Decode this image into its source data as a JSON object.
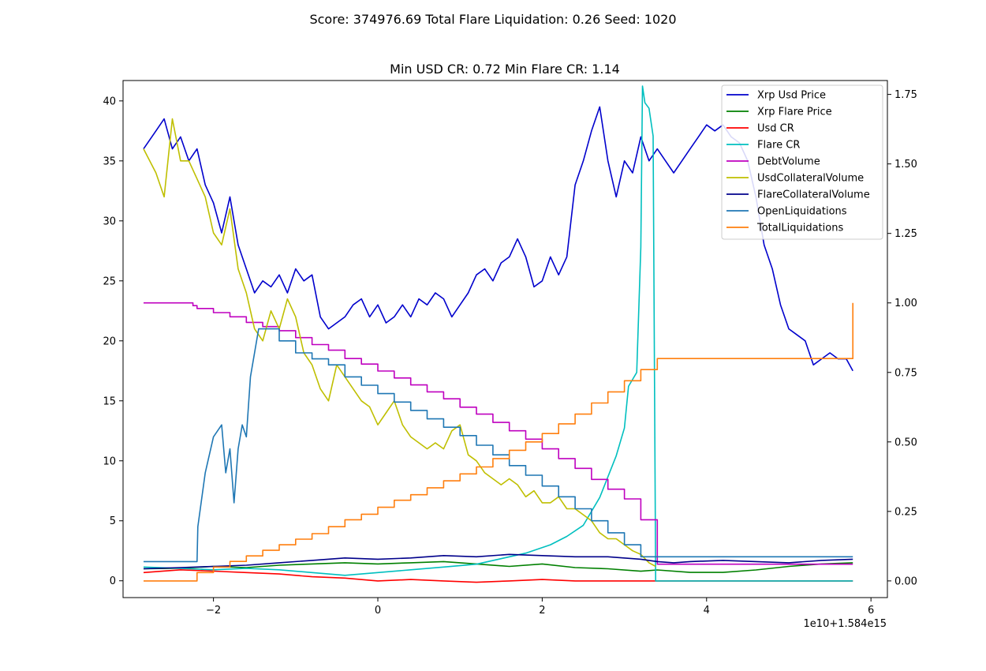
{
  "figure": {
    "suptitle": "Score: 374976.69 Total Flare Liquidation: 0.26 Seed: 1020",
    "subtitle": "Min USD CR: 0.72 Min Flare CR: 1.14",
    "x_offset_label": "1e10+1.584e15"
  },
  "chart_data": {
    "type": "line",
    "title": "Min USD CR: 0.72 Min Flare CR: 1.14",
    "suptitle": "Score: 374976.69 Total Flare Liquidation: 0.26 Seed: 1020",
    "xlabel": "",
    "ylabel": "",
    "x_offset": "1e10+1.584e15",
    "xlim": [
      -3.1,
      6.2
    ],
    "ylim_left": [
      -1.4,
      41.7
    ],
    "ylim_right": [
      -0.06,
      1.8
    ],
    "xticks": [
      -2,
      0,
      2,
      4,
      6
    ],
    "xtick_labels": [
      "−2",
      "0",
      "2",
      "4",
      "6"
    ],
    "yticks_left": [
      0,
      5,
      10,
      15,
      20,
      25,
      30,
      35,
      40
    ],
    "ytick_labels_left": [
      "0",
      "5",
      "10",
      "15",
      "20",
      "25",
      "30",
      "35",
      "40"
    ],
    "yticks_right": [
      0.0,
      0.25,
      0.5,
      0.75,
      1.0,
      1.25,
      1.5,
      1.75
    ],
    "ytick_labels_right": [
      "0.00",
      "0.25",
      "0.50",
      "0.75",
      "1.00",
      "1.25",
      "1.50",
      "1.75"
    ],
    "grid": false,
    "legend_position": "top-right",
    "series": [
      {
        "name": "Xrp Usd Price",
        "color": "#0000cc",
        "axis": "left",
        "step": false,
        "x": [
          -2.85,
          -2.7,
          -2.6,
          -2.5,
          -2.4,
          -2.3,
          -2.2,
          -2.1,
          -2.0,
          -1.9,
          -1.8,
          -1.7,
          -1.6,
          -1.5,
          -1.4,
          -1.3,
          -1.2,
          -1.1,
          -1.0,
          -0.9,
          -0.8,
          -0.7,
          -0.6,
          -0.5,
          -0.4,
          -0.3,
          -0.2,
          -0.1,
          0.0,
          0.1,
          0.2,
          0.3,
          0.4,
          0.5,
          0.6,
          0.7,
          0.8,
          0.9,
          1.0,
          1.1,
          1.2,
          1.3,
          1.4,
          1.5,
          1.6,
          1.7,
          1.8,
          1.9,
          2.0,
          2.1,
          2.2,
          2.3,
          2.4,
          2.5,
          2.6,
          2.7,
          2.8,
          2.9,
          3.0,
          3.1,
          3.2,
          3.3,
          3.4,
          3.5,
          3.6,
          3.7,
          3.8,
          3.9,
          4.0,
          4.1,
          4.2,
          4.3,
          4.4,
          4.5,
          4.6,
          4.7,
          4.8,
          4.9,
          5.0,
          5.1,
          5.2,
          5.3,
          5.4,
          5.5,
          5.6,
          5.7,
          5.78
        ],
        "y": [
          36,
          37.5,
          38.5,
          36,
          37,
          35,
          36,
          33,
          31.5,
          29,
          32,
          28,
          26,
          24,
          25,
          24.5,
          25.5,
          24,
          26,
          25,
          25.5,
          22,
          21,
          21.5,
          22,
          23,
          23.5,
          22,
          23,
          21.5,
          22,
          23,
          22,
          23.5,
          23,
          24,
          23.5,
          22,
          23,
          24,
          25.5,
          26,
          25,
          26.5,
          27,
          28.5,
          27,
          24.5,
          25,
          27,
          25.5,
          27,
          33,
          35,
          37.5,
          39.5,
          35,
          32,
          35,
          34,
          37,
          35,
          36,
          35,
          34,
          35,
          36,
          37,
          38,
          37.5,
          38,
          37,
          36.5,
          35,
          32,
          28,
          26,
          23,
          21,
          20.5,
          20,
          18,
          18.5,
          19,
          18.5,
          18.5,
          17.5
        ]
      },
      {
        "name": "Xrp Flare Price",
        "color": "#008000",
        "axis": "left",
        "step": false,
        "x": [
          -2.85,
          -2.4,
          -2.0,
          -1.6,
          -1.2,
          -0.8,
          -0.4,
          0.0,
          0.4,
          0.8,
          1.2,
          1.6,
          2.0,
          2.4,
          2.8,
          3.2,
          3.4,
          3.8,
          4.2,
          4.6,
          5.0,
          5.4,
          5.78
        ],
        "y": [
          1.0,
          1.05,
          1.2,
          1.1,
          1.3,
          1.4,
          1.5,
          1.4,
          1.5,
          1.6,
          1.4,
          1.2,
          1.4,
          1.1,
          1.0,
          0.8,
          0.9,
          0.7,
          0.7,
          0.9,
          1.2,
          1.4,
          1.5
        ]
      },
      {
        "name": "Usd CR",
        "color": "#ff0000",
        "axis": "right",
        "step": false,
        "x": [
          -2.85,
          -2.4,
          -2.0,
          -1.6,
          -1.2,
          -0.8,
          -0.4,
          0.0,
          0.4,
          0.8,
          1.2,
          1.6,
          2.0,
          2.4,
          2.8,
          3.2,
          3.4,
          3.8,
          4.2,
          4.6,
          5.0,
          5.4,
          5.78
        ],
        "y": [
          0.03,
          0.04,
          0.035,
          0.03,
          0.025,
          0.015,
          0.01,
          0.0,
          0.005,
          0.0,
          -0.005,
          0.0,
          0.005,
          0.0,
          0.0,
          0.0,
          0.0,
          0.0,
          0.0,
          0.0,
          0.0,
          0.0,
          0.0
        ]
      },
      {
        "name": "Flare CR",
        "color": "#00bfbf",
        "axis": "right",
        "step": false,
        "x": [
          -2.85,
          -2.4,
          -2.0,
          -1.6,
          -1.2,
          -0.8,
          -0.4,
          0.0,
          0.4,
          0.8,
          1.2,
          1.5,
          1.8,
          2.1,
          2.3,
          2.5,
          2.7,
          2.9,
          3.0,
          3.05,
          3.15,
          3.2,
          3.22,
          3.25,
          3.3,
          3.35,
          3.38,
          3.4,
          3.6,
          4.0,
          4.5,
          5.0,
          5.78
        ],
        "y": [
          0.05,
          0.045,
          0.04,
          0.045,
          0.04,
          0.03,
          0.02,
          0.03,
          0.04,
          0.05,
          0.06,
          0.08,
          0.1,
          0.13,
          0.16,
          0.2,
          0.3,
          0.45,
          0.55,
          0.7,
          0.75,
          1.2,
          1.78,
          1.72,
          1.7,
          1.6,
          0.0,
          0.0,
          0.0,
          0.0,
          0.0,
          0.0,
          0.0
        ]
      },
      {
        "name": "DebtVolume",
        "color": "#bf00bf",
        "axis": "right",
        "step": true,
        "x": [
          -2.85,
          -2.25,
          -2.2,
          -2.0,
          -1.8,
          -1.6,
          -1.4,
          -1.2,
          -1.0,
          -0.8,
          -0.6,
          -0.4,
          -0.2,
          0.0,
          0.2,
          0.4,
          0.6,
          0.8,
          1.0,
          1.2,
          1.4,
          1.6,
          1.8,
          2.0,
          2.2,
          2.4,
          2.6,
          2.8,
          3.0,
          3.2,
          3.4,
          5.78
        ],
        "y": [
          1.0,
          0.99,
          0.98,
          0.965,
          0.95,
          0.93,
          0.915,
          0.9,
          0.875,
          0.85,
          0.83,
          0.8,
          0.78,
          0.755,
          0.73,
          0.705,
          0.68,
          0.655,
          0.625,
          0.6,
          0.57,
          0.54,
          0.51,
          0.475,
          0.44,
          0.405,
          0.365,
          0.33,
          0.295,
          0.22,
          0.06,
          0.06
        ]
      },
      {
        "name": "UsdCollateralVolume",
        "color": "#bfbf00",
        "axis": "left",
        "step": false,
        "x": [
          -2.85,
          -2.7,
          -2.6,
          -2.5,
          -2.4,
          -2.3,
          -2.2,
          -2.1,
          -2.0,
          -1.9,
          -1.8,
          -1.7,
          -1.6,
          -1.5,
          -1.4,
          -1.3,
          -1.2,
          -1.1,
          -1.0,
          -0.9,
          -0.8,
          -0.7,
          -0.6,
          -0.5,
          -0.4,
          -0.3,
          -0.2,
          -0.1,
          0.0,
          0.1,
          0.2,
          0.3,
          0.4,
          0.5,
          0.6,
          0.7,
          0.8,
          0.9,
          1.0,
          1.1,
          1.2,
          1.3,
          1.4,
          1.5,
          1.6,
          1.7,
          1.8,
          1.9,
          2.0,
          2.1,
          2.2,
          2.3,
          2.4,
          2.5,
          2.6,
          2.7,
          2.8,
          2.9,
          3.0,
          3.1,
          3.2,
          3.3,
          3.38
        ],
        "y": [
          36,
          34,
          32,
          38.5,
          35,
          35,
          33.5,
          32,
          29,
          28,
          31,
          26,
          24,
          21,
          20,
          22.5,
          21,
          23.5,
          22,
          19,
          18,
          16,
          15,
          18,
          17,
          16,
          15,
          14.5,
          13,
          14,
          15,
          13,
          12,
          11.5,
          11,
          11.5,
          11,
          12.5,
          13,
          10.5,
          10,
          9,
          8.5,
          8,
          8.5,
          8,
          7,
          7.5,
          6.5,
          6.5,
          7,
          6,
          6,
          5.5,
          5,
          4,
          3.5,
          3.5,
          3,
          2.5,
          2.2,
          1.5,
          1.2
        ]
      },
      {
        "name": "FlareCollateralVolume",
        "color": "#00008b",
        "axis": "left",
        "step": false,
        "x": [
          -2.85,
          -2.4,
          -2.0,
          -1.6,
          -1.2,
          -0.8,
          -0.4,
          0.0,
          0.4,
          0.8,
          1.2,
          1.6,
          2.0,
          2.4,
          2.8,
          3.2,
          3.4,
          3.6,
          3.8,
          4.2,
          4.6,
          5.0,
          5.4,
          5.78
        ],
        "y": [
          1.0,
          1.1,
          1.2,
          1.3,
          1.5,
          1.7,
          1.9,
          1.8,
          1.9,
          2.1,
          2.0,
          2.2,
          2.1,
          2.0,
          2.0,
          1.8,
          1.6,
          1.5,
          1.6,
          1.7,
          1.6,
          1.5,
          1.7,
          1.8
        ]
      },
      {
        "name": "OpenLiquidations",
        "color": "#1f77b4",
        "axis": "left",
        "step": false,
        "x": [
          -2.85,
          -2.2,
          -2.19,
          -2.1,
          -2.0,
          -1.9,
          -1.85,
          -1.8,
          -1.75,
          -1.7,
          -1.65,
          -1.6,
          -1.55,
          -1.5,
          -1.45,
          -1.4,
          -1.2,
          -1.2,
          -1.0,
          -1.0,
          -0.8,
          -0.8,
          -0.6,
          -0.6,
          -0.4,
          -0.4,
          -0.2,
          -0.2,
          0.0,
          0.0,
          0.2,
          0.2,
          0.4,
          0.4,
          0.6,
          0.6,
          0.8,
          0.8,
          1.0,
          1.0,
          1.2,
          1.2,
          1.4,
          1.4,
          1.6,
          1.6,
          1.8,
          1.8,
          2.0,
          2.0,
          2.2,
          2.2,
          2.4,
          2.4,
          2.6,
          2.6,
          2.8,
          2.8,
          3.0,
          3.0,
          3.2,
          3.2,
          3.4,
          3.4,
          5.78
        ],
        "y": [
          1.6,
          1.6,
          4.5,
          9,
          12,
          13,
          9,
          11,
          6.5,
          11,
          13,
          12,
          17,
          19,
          21,
          21,
          21,
          20,
          20,
          19,
          19,
          18.5,
          18.5,
          18,
          18,
          17,
          17,
          16.3,
          16.3,
          15.6,
          15.6,
          14.9,
          14.9,
          14.2,
          14.2,
          13.5,
          13.5,
          12.8,
          12.8,
          12.1,
          12.1,
          11.3,
          11.3,
          10.5,
          10.5,
          9.6,
          9.6,
          8.8,
          8.8,
          7.9,
          7.9,
          7,
          7,
          6,
          6,
          5,
          5,
          4,
          4,
          3,
          3,
          2,
          2,
          2,
          2
        ]
      },
      {
        "name": "TotalLiquidations",
        "color": "#ff7f0e",
        "axis": "right",
        "step": true,
        "x": [
          -2.85,
          -2.2,
          -2.0,
          -1.8,
          -1.6,
          -1.4,
          -1.2,
          -1.0,
          -0.8,
          -0.6,
          -0.4,
          -0.2,
          0.0,
          0.2,
          0.4,
          0.6,
          0.8,
          1.0,
          1.2,
          1.4,
          1.6,
          1.8,
          2.0,
          2.2,
          2.4,
          2.6,
          2.8,
          3.0,
          3.2,
          3.4,
          5.78
        ],
        "y": [
          0.0,
          0.03,
          0.05,
          0.07,
          0.09,
          0.11,
          0.13,
          0.15,
          0.17,
          0.195,
          0.22,
          0.24,
          0.265,
          0.29,
          0.31,
          0.335,
          0.36,
          0.385,
          0.41,
          0.44,
          0.47,
          0.5,
          0.53,
          0.565,
          0.6,
          0.64,
          0.68,
          0.72,
          0.76,
          0.8,
          1.0
        ]
      }
    ]
  },
  "legend": {
    "position": "top-right",
    "items": [
      {
        "label": "Xrp Usd Price",
        "color": "#0000cc"
      },
      {
        "label": "Xrp Flare Price",
        "color": "#008000"
      },
      {
        "label": "Usd CR",
        "color": "#ff0000"
      },
      {
        "label": "Flare CR",
        "color": "#00bfbf"
      },
      {
        "label": "DebtVolume",
        "color": "#bf00bf"
      },
      {
        "label": "UsdCollateralVolume",
        "color": "#bfbf00"
      },
      {
        "label": "FlareCollateralVolume",
        "color": "#00008b"
      },
      {
        "label": "OpenLiquidations",
        "color": "#1f77b4"
      },
      {
        "label": "TotalLiquidations",
        "color": "#ff7f0e"
      }
    ]
  }
}
